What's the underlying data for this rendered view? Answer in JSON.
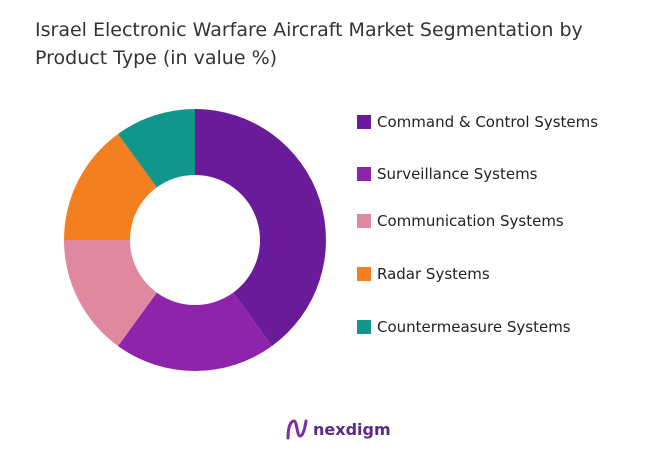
{
  "chart_data": {
    "type": "pie",
    "donut": true,
    "title": "Israel Electronic Warfare Aircraft Market Segmentation by Product Type (in value %)",
    "categories": [
      "Command & Control Systems",
      "Surveillance Systems",
      "Communication Systems",
      "Radar Systems",
      "Countermeasure Systems"
    ],
    "values": [
      40,
      20,
      15,
      15,
      10
    ],
    "colors": [
      "#6a1b9a",
      "#8e24aa",
      "#e088a0",
      "#f47f20",
      "#10968a"
    ],
    "legend_position": "right"
  },
  "legend": [
    "Command & Control Systems",
    "Surveillance Systems",
    "Communication Systems",
    "Radar Systems",
    "Countermeasure Systems"
  ],
  "logo": {
    "text": "nexdigm"
  }
}
